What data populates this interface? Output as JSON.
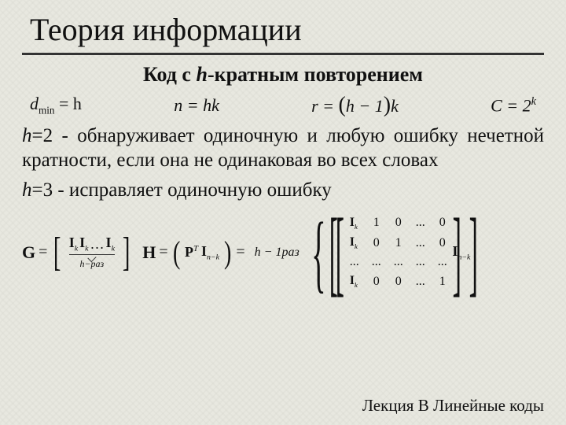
{
  "title": "Теория информации",
  "subtitle_prefix": "Код с ",
  "subtitle_var": "h",
  "subtitle_suffix": "-кратным повторением",
  "formulas": {
    "dmin_lhs": "d",
    "dmin_sub": "min",
    "dmin_rhs": "= h",
    "n_eq": "n = hk",
    "r_lhs": "r = ",
    "r_paren_l": "(",
    "r_inner": "h − 1",
    "r_paren_r": ")",
    "r_after": "k",
    "C_lhs": "C = 2",
    "C_sup": "k"
  },
  "para1_h": "h",
  "para1_eq": "=2 ",
  "para1_text": "- обнаруживает одиночную и любую ошибку нечетной кратности,  если она не одинаковая во всех словах",
  "para2_h": "h",
  "para2_eq": "=3 ",
  "para2_text": "- исправляет одиночную ошибку",
  "G_label": "G",
  "Ik_label": "I",
  "Ik_sub": "k",
  "dots": "…",
  "underbrace_label": "h−раз",
  "H_label": "H",
  "P_label": "P",
  "P_sup": "T",
  "Ink_label": "I",
  "Ink_sub": "n−k",
  "hraz_label": "h − 1раз",
  "hmat": {
    "rows": [
      [
        "Ik",
        "1",
        "0",
        "...",
        "0"
      ],
      [
        "Ik",
        "0",
        "1",
        "...",
        "0"
      ],
      [
        "...",
        "...",
        "...",
        "...",
        "..."
      ],
      [
        "Ik",
        "0",
        "0",
        "...",
        "1"
      ]
    ]
  },
  "footer": "Лекция В Линейные коды",
  "colors": {
    "bg": "#e8e8e0",
    "text": "#111111",
    "line": "#333333"
  }
}
